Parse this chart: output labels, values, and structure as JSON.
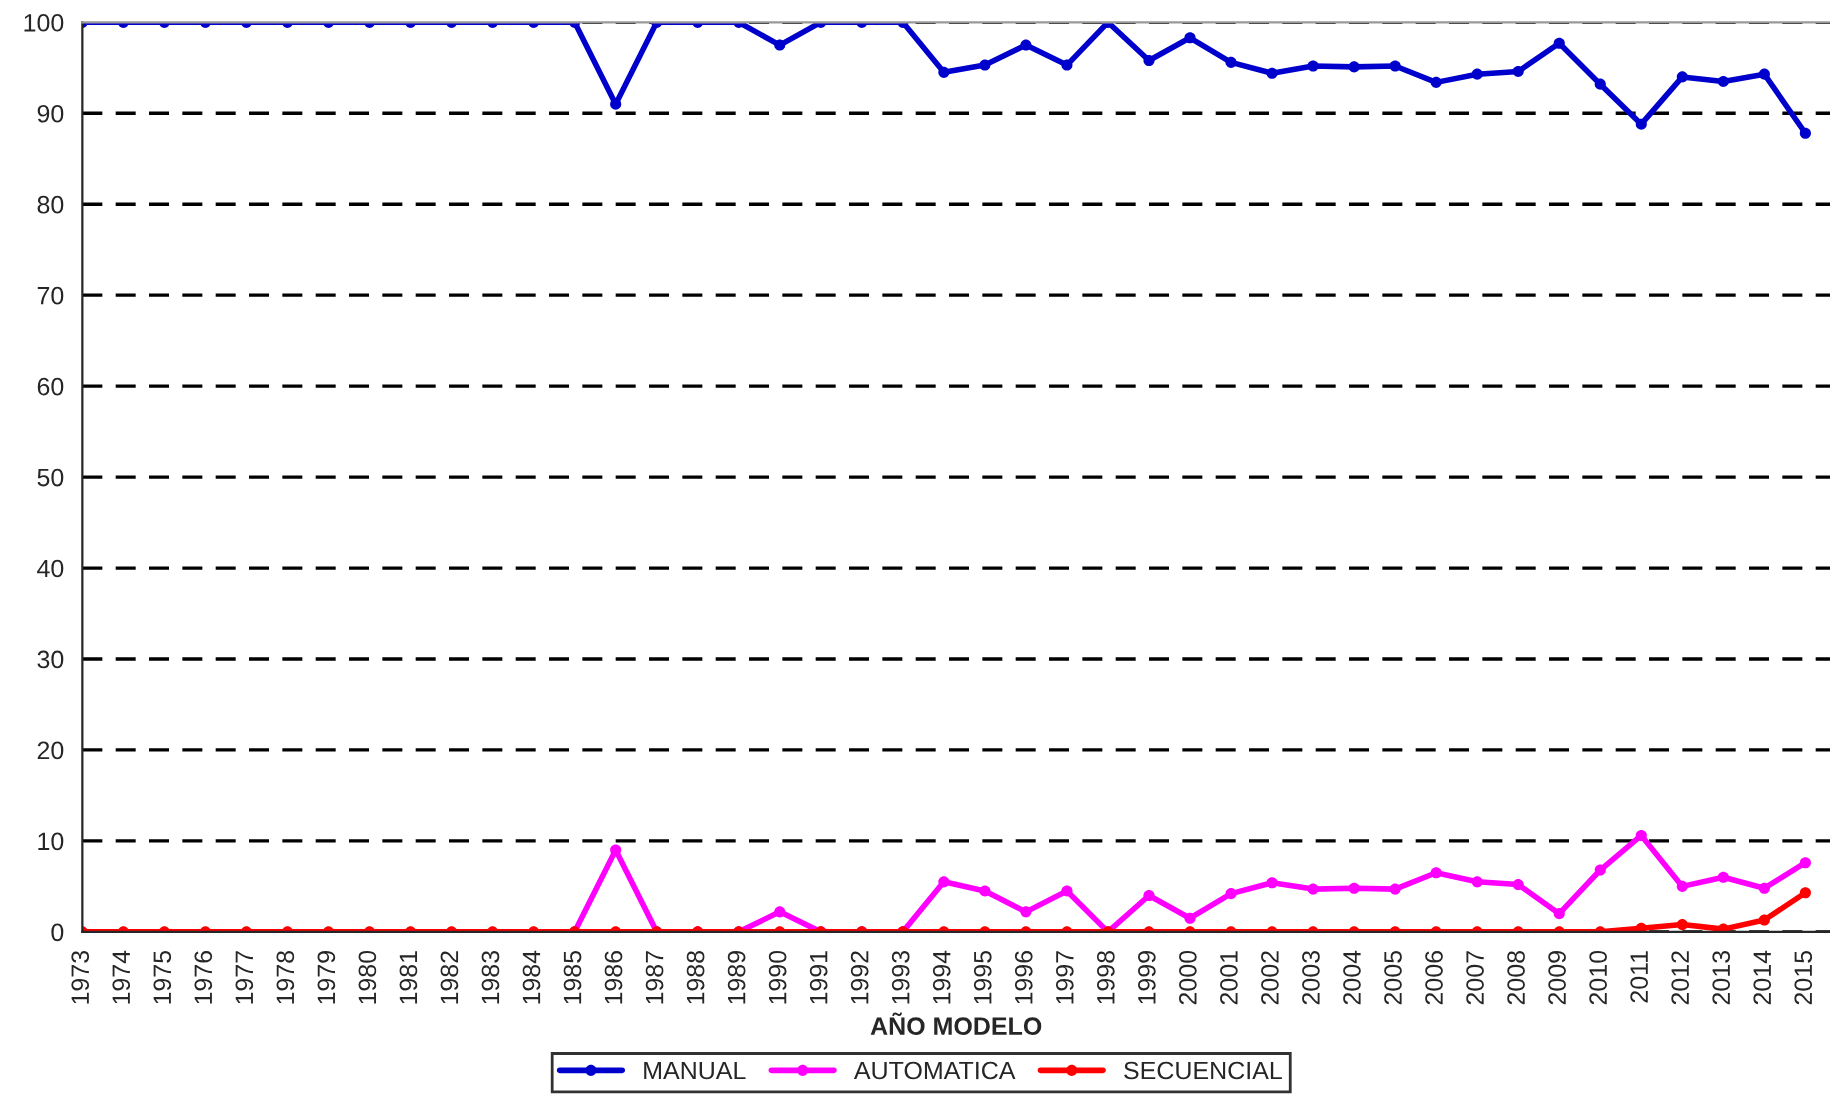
{
  "chart_data": {
    "type": "line",
    "xlabel": "AÑO MODELO",
    "categories": [
      "1973",
      "1974",
      "1975",
      "1976",
      "1977",
      "1978",
      "1979",
      "1980",
      "1981",
      "1982",
      "1983",
      "1984",
      "1985",
      "1986",
      "1987",
      "1988",
      "1989",
      "1990",
      "1991",
      "1992",
      "1993",
      "1994",
      "1995",
      "1996",
      "1997",
      "1998",
      "1999",
      "2000",
      "2001",
      "2002",
      "2003",
      "2004",
      "2005",
      "2006",
      "2007",
      "2008",
      "2009",
      "2010",
      "2011",
      "2012",
      "2013",
      "2014",
      "2015"
    ],
    "series": [
      {
        "name": "MANUAL",
        "color": "#0000cc",
        "values": [
          100,
          100,
          100,
          100,
          100,
          100,
          100,
          100,
          100,
          100,
          100,
          100,
          100,
          91,
          100,
          100,
          100,
          97.5,
          100,
          100,
          100,
          94.5,
          95.3,
          97.5,
          95.3,
          100,
          95.8,
          98.3,
          95.6,
          94.4,
          95.2,
          95.1,
          95.2,
          93.4,
          94.3,
          94.6,
          97.7,
          93.2,
          88.8,
          94,
          93.5,
          94.3,
          87.8
        ]
      },
      {
        "name": "AUTOMATICA",
        "color": "#ff00ff",
        "values": [
          null,
          null,
          null,
          null,
          null,
          null,
          null,
          null,
          null,
          null,
          null,
          null,
          0,
          9,
          0,
          0,
          0,
          2.2,
          0,
          0,
          0,
          5.5,
          4.5,
          2.2,
          4.5,
          0,
          4,
          1.5,
          4.2,
          5.4,
          4.7,
          4.8,
          4.7,
          6.5,
          5.5,
          5.2,
          2,
          6.8,
          10.6,
          5,
          6,
          4.8,
          7.6
        ]
      },
      {
        "name": "SECUENCIAL",
        "color": "#ff0000",
        "values": [
          0,
          0,
          0,
          0,
          0,
          0,
          0,
          0,
          0,
          0,
          0,
          0,
          0,
          0,
          0,
          0,
          0,
          0,
          0,
          0,
          0,
          0,
          0,
          0,
          0,
          0,
          0,
          0,
          0,
          0,
          0,
          0,
          0,
          0,
          0,
          0,
          0,
          0,
          0.4,
          0.8,
          0.3,
          1.3,
          4.3
        ]
      }
    ],
    "ylim": [
      0,
      100
    ],
    "yticks": [
      0,
      10,
      20,
      30,
      40,
      50,
      60,
      70,
      80,
      90,
      100
    ],
    "grid": "y",
    "legend": "bottom",
    "marker": "circle",
    "line_style": "solid"
  }
}
